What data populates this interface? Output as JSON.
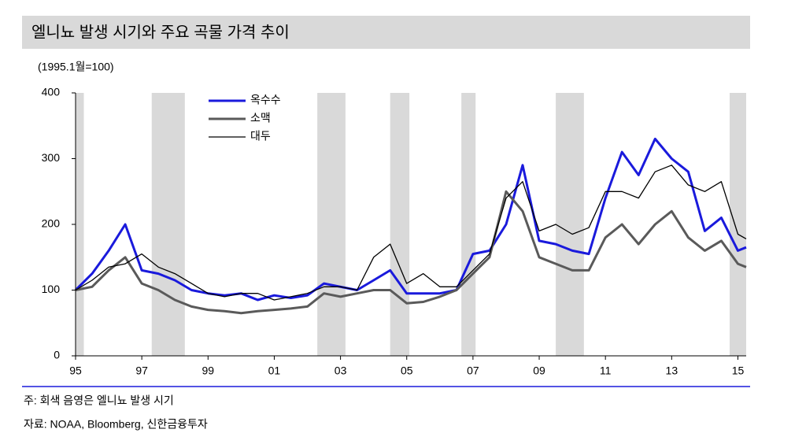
{
  "chart_data": {
    "type": "line",
    "title": "엘니뇨 발생 시기와 주요 곡물 가격 추이",
    "subtitle": "(1995.1월=100)",
    "note": "주: 회색 음영은 엘니뇨 발생 시기",
    "source": "자료: NOAA, Bloomberg, 신한금융투자",
    "x": [
      1995,
      1995.5,
      1996,
      1996.5,
      1997,
      1997.5,
      1998,
      1998.5,
      1999,
      1999.5,
      2000,
      2000.5,
      2001,
      2001.5,
      2002,
      2002.5,
      2003,
      2003.5,
      2004,
      2004.5,
      2005,
      2005.5,
      2006,
      2006.5,
      2007,
      2007.5,
      2008,
      2008.5,
      2009,
      2009.5,
      2010,
      2010.5,
      2011,
      2011.5,
      2012,
      2012.5,
      2013,
      2013.5,
      2014,
      2014.5,
      2015,
      2015.25
    ],
    "series": [
      {
        "name": "옥수수",
        "color": "#1a1adc",
        "width": 3,
        "values": [
          100,
          125,
          160,
          200,
          130,
          125,
          115,
          100,
          95,
          92,
          95,
          85,
          92,
          88,
          92,
          110,
          105,
          100,
          115,
          130,
          95,
          95,
          95,
          100,
          155,
          160,
          200,
          290,
          175,
          170,
          160,
          155,
          240,
          310,
          275,
          330,
          300,
          280,
          190,
          210,
          160,
          165
        ]
      },
      {
        "name": "소맥",
        "color": "#5a5a5a",
        "width": 3,
        "values": [
          100,
          105,
          130,
          150,
          110,
          100,
          85,
          75,
          70,
          68,
          65,
          68,
          70,
          72,
          75,
          95,
          90,
          95,
          100,
          100,
          80,
          82,
          90,
          100,
          125,
          150,
          250,
          220,
          150,
          140,
          130,
          130,
          180,
          200,
          170,
          200,
          220,
          180,
          160,
          175,
          140,
          135
        ]
      },
      {
        "name": "대두",
        "color": "#000000",
        "width": 1.3,
        "values": [
          100,
          115,
          135,
          140,
          155,
          135,
          125,
          110,
          95,
          90,
          95,
          95,
          85,
          90,
          95,
          105,
          105,
          100,
          150,
          170,
          110,
          125,
          105,
          105,
          130,
          155,
          240,
          265,
          190,
          200,
          185,
          195,
          250,
          250,
          240,
          280,
          290,
          260,
          250,
          265,
          185,
          178
        ]
      }
    ],
    "shaded_periods": [
      [
        1995,
        1995.25
      ],
      [
        1997.3,
        1998.3
      ],
      [
        2002.3,
        2003.15
      ],
      [
        2004.5,
        2005.08
      ],
      [
        2006.65,
        2007.08
      ],
      [
        2009.5,
        2010.35
      ],
      [
        2014.75,
        2015.25
      ]
    ],
    "shade_color": "#d9d9d9",
    "xlim": [
      1995,
      2015.25
    ],
    "ylim": [
      0,
      400
    ],
    "xticks": [
      {
        "value": 1995,
        "label": "95"
      },
      {
        "value": 1997,
        "label": "97"
      },
      {
        "value": 1999,
        "label": "99"
      },
      {
        "value": 2001,
        "label": "01"
      },
      {
        "value": 2003,
        "label": "03"
      },
      {
        "value": 2005,
        "label": "05"
      },
      {
        "value": 2007,
        "label": "07"
      },
      {
        "value": 2009,
        "label": "09"
      },
      {
        "value": 2011,
        "label": "11"
      },
      {
        "value": 2013,
        "label": "13"
      },
      {
        "value": 2015,
        "label": "15"
      }
    ],
    "yticks": [
      0,
      100,
      200,
      300,
      400
    ]
  }
}
